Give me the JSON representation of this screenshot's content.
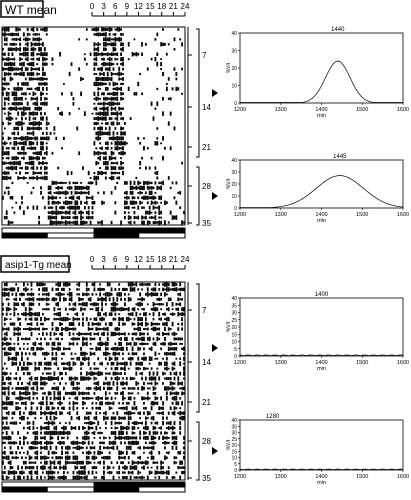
{
  "panels": [
    {
      "title": "WT mean",
      "top_hours": [
        "0",
        "3",
        "6",
        "9",
        "12",
        "15",
        "18",
        "21",
        "24"
      ],
      "day_labels": [
        "7",
        "14",
        "21",
        "28",
        "35"
      ],
      "periodograms": [
        {
          "peak_label": "1440",
          "peak_x": 1440,
          "peak_y": 24,
          "width": 30,
          "ylim": [
            0,
            40
          ],
          "yticks": [
            "0",
            "10",
            "20",
            "30",
            "40"
          ],
          "xticks": [
            "1200",
            "1300",
            "1400",
            "1500",
            "1600"
          ],
          "ylabel": "%V/t",
          "xlabel": "min"
        },
        {
          "peak_label": "1445",
          "peak_x": 1445,
          "peak_y": 27,
          "width": 58,
          "ylim": [
            0,
            40
          ],
          "yticks": [
            "0",
            "10",
            "20",
            "30",
            "40"
          ],
          "xticks": [
            "1200",
            "1300",
            "1400",
            "1500",
            "1600"
          ],
          "ylabel": "%V/t",
          "xlabel": "min"
        }
      ]
    },
    {
      "title": "asip1-Tg mean",
      "top_hours": [
        "0",
        "3",
        "6",
        "9",
        "12",
        "15",
        "18",
        "21",
        "24"
      ],
      "day_labels": [
        "7",
        "14",
        "21",
        "28",
        "35"
      ],
      "periodograms": [
        {
          "peak_label": "1400",
          "peak_x": 1400,
          "peak_y": 0.3,
          "width": 0,
          "ylim": [
            0,
            40
          ],
          "yticks": [
            "0",
            "5",
            "10",
            "15",
            "20",
            "25",
            "30",
            "35",
            "40"
          ],
          "xticks": [
            "1200",
            "1300",
            "1400",
            "1500",
            "1600"
          ],
          "ylabel": "%V/t",
          "xlabel": "min"
        },
        {
          "peak_label": "1280",
          "peak_x": 1280,
          "peak_y": 0.3,
          "width": 0,
          "ylim": [
            0,
            40
          ],
          "yticks": [
            "0",
            "5",
            "10",
            "15",
            "20",
            "25",
            "30",
            "35",
            "40"
          ],
          "xticks": [
            "1200",
            "1300",
            "1400",
            "1500",
            "1600"
          ],
          "ylabel": "%V/t",
          "xlabel": "min"
        }
      ]
    }
  ]
}
